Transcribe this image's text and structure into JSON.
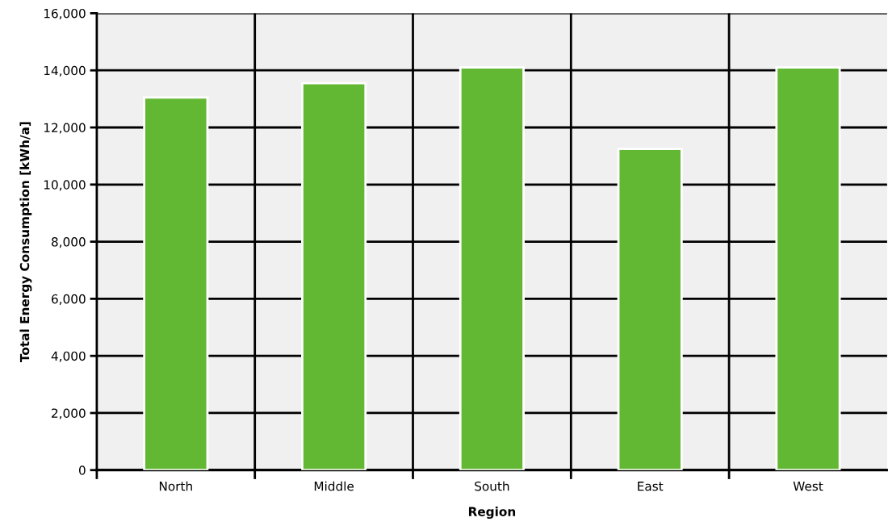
{
  "chart_data": {
    "type": "bar",
    "xlabel": "Region",
    "ylabel": "Total Energy Consumption [kWh/a]",
    "categories": [
      "North",
      "Middle",
      "South",
      "East",
      "West"
    ],
    "values": [
      13050,
      13550,
      14100,
      11250,
      14100
    ],
    "color": "#62b833",
    "ylim": [
      0,
      16000
    ],
    "yticks": [
      {
        "value": 0,
        "label": "0"
      },
      {
        "value": 2000,
        "label": "2,000"
      },
      {
        "value": 4000,
        "label": "4,000"
      },
      {
        "value": 6000,
        "label": "6,000"
      },
      {
        "value": 8000,
        "label": "8,000"
      },
      {
        "value": 10000,
        "label": "10,000"
      },
      {
        "value": 12000,
        "label": "12,000"
      },
      {
        "value": 14000,
        "label": "14,000"
      },
      {
        "value": 16000,
        "label": "16,000"
      }
    ],
    "grid": true
  }
}
